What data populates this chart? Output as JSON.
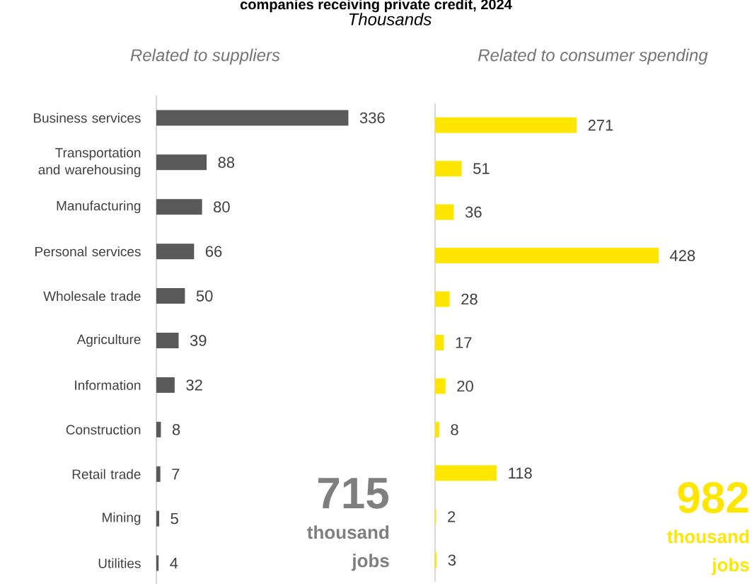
{
  "chart_data": [
    {
      "type": "bar",
      "orientation": "horizontal",
      "title": "companies receiving private credit, 2024",
      "subtitle": "Thousands",
      "categories": [
        "Business services",
        "Transportation and warehousing",
        "Manufacturing",
        "Personal services",
        "Wholesale trade",
        "Agriculture",
        "Information",
        "Construction",
        "Retail trade",
        "Mining",
        "Utilities"
      ],
      "values": [
        336,
        88,
        80,
        66,
        50,
        39,
        32,
        8,
        7,
        5,
        4
      ],
      "color": "#595959",
      "data_labels": true,
      "annotations": [
        "Related to suppliers",
        "715",
        "thousand jobs"
      ]
    },
    {
      "type": "bar",
      "orientation": "horizontal",
      "categories": [
        null,
        null,
        null,
        null,
        null,
        null,
        null,
        null,
        null,
        null,
        null
      ],
      "values": [
        271,
        51,
        36,
        428,
        28,
        17,
        20,
        8,
        118,
        2,
        3
      ],
      "color": "#ffe600",
      "data_labels": true,
      "annotations": [
        "Related to consumer spending",
        "982",
        "thousand jobs"
      ]
    }
  ]
}
